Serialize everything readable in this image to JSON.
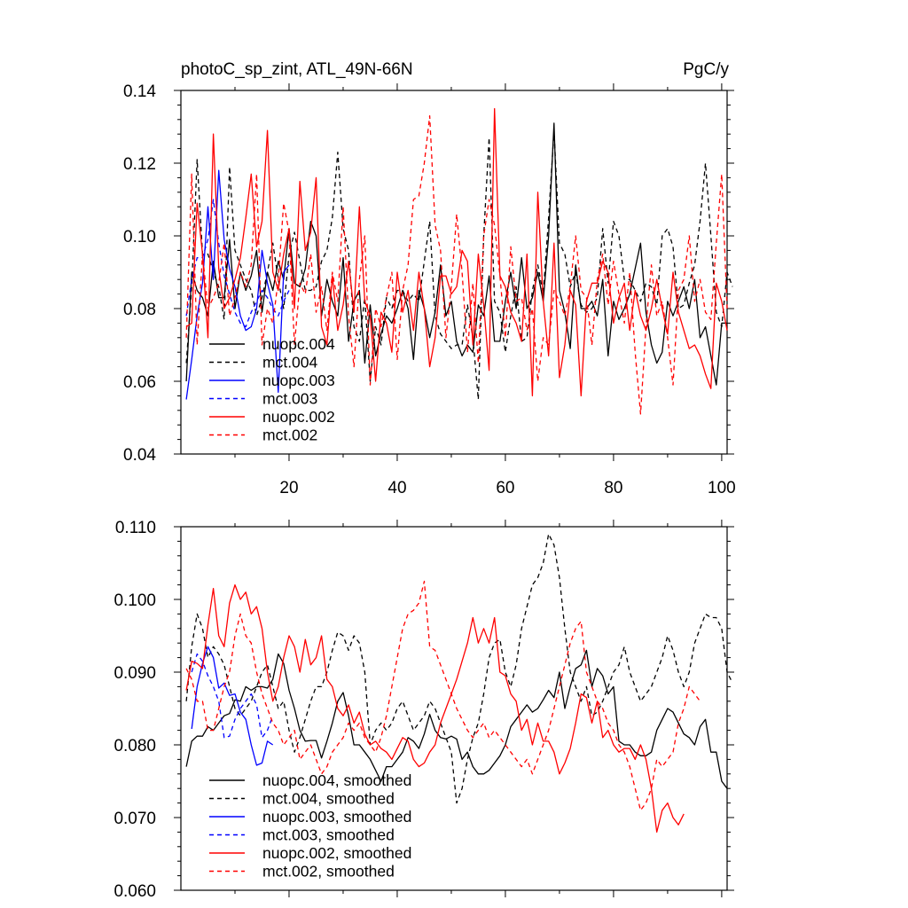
{
  "chart_data": [
    {
      "type": "line",
      "title": "photoC_sp_zint, ATL_49N-66N",
      "units": "PgC/y",
      "xlabel": "",
      "ylabel": "",
      "xlim": [
        0,
        101
      ],
      "ylim": [
        0.04,
        0.14
      ],
      "yticks": [
        "0.04",
        "0.06",
        "0.08",
        "0.10",
        "0.12",
        "0.14"
      ],
      "xticks": [
        "20",
        "40",
        "60",
        "80",
        "100"
      ],
      "legend_position": "bottom-left",
      "series": [
        {
          "name": "nuopc.004",
          "color": "#000000",
          "dash": "solid",
          "x0": 1,
          "values": [
            0.06,
            0.09,
            0.085,
            0.083,
            0.078,
            0.093,
            0.083,
            0.083,
            0.099,
            0.08,
            0.09,
            0.085,
            0.089,
            0.096,
            0.079,
            0.09,
            0.085,
            0.093,
            0.088,
            0.102,
            0.087,
            0.086,
            0.091,
            0.104,
            0.1,
            0.078,
            0.088,
            0.082,
            0.078,
            0.094,
            0.071,
            0.082,
            0.085,
            0.065,
            0.081,
            0.067,
            0.073,
            0.078,
            0.076,
            0.08,
            0.085,
            0.08,
            0.066,
            0.085,
            0.08,
            0.072,
            0.079,
            0.092,
            0.078,
            0.082,
            0.071,
            0.067,
            0.07,
            0.068,
            0.081,
            0.078,
            0.089,
            0.071,
            0.071,
            0.082,
            0.09,
            0.08,
            0.094,
            0.08,
            0.083,
            0.09,
            0.082,
            0.1,
            0.131,
            0.085,
            0.079,
            0.069,
            0.092,
            0.08,
            0.08,
            0.082,
            0.078,
            0.088,
            0.067,
            0.082,
            0.077,
            0.08,
            0.084,
            0.091,
            0.098,
            0.079,
            0.07,
            0.065,
            0.068,
            0.082,
            0.078,
            0.082,
            0.086,
            0.08,
            0.088,
            0.072,
            0.075,
            0.067,
            0.059,
            0.076,
            0.076
          ]
        },
        {
          "name": "mct.004",
          "color": "#000000",
          "dash": "dashed",
          "x0": 1,
          "values": [
            0.065,
            0.086,
            0.121,
            0.095,
            0.095,
            0.09,
            0.086,
            0.077,
            0.119,
            0.096,
            0.092,
            0.088,
            0.085,
            0.078,
            0.083,
            0.09,
            0.098,
            0.088,
            0.08,
            0.095,
            0.101,
            0.093,
            0.085,
            0.085,
            0.086,
            0.093,
            0.096,
            0.105,
            0.123,
            0.102,
            0.096,
            0.075,
            0.071,
            0.083,
            0.06,
            0.075,
            0.07,
            0.083,
            0.08,
            0.085,
            0.085,
            0.082,
            0.084,
            0.082,
            0.093,
            0.104,
            0.078,
            0.073,
            0.071,
            0.069,
            0.07,
            0.07,
            0.081,
            0.072,
            0.055,
            0.1,
            0.127,
            0.082,
            0.079,
            0.068,
            0.078,
            0.086,
            0.071,
            0.072,
            0.085,
            0.092,
            0.084,
            0.105,
            0.129,
            0.098,
            0.095,
            0.086,
            0.09,
            0.081,
            0.079,
            0.08,
            0.083,
            0.102,
            0.087,
            0.104,
            0.1,
            0.088,
            0.088,
            0.085,
            0.082,
            0.087,
            0.086,
            0.081,
            0.1,
            0.102,
            0.097,
            0.08,
            0.081,
            0.087,
            0.092,
            0.104,
            0.12,
            0.1,
            0.079,
            0.075,
            0.09,
            0.086
          ]
        },
        {
          "name": "nuopc.003",
          "color": "#0000ff",
          "dash": "solid",
          "x0": 1,
          "values": [
            0.055,
            0.066,
            0.078,
            0.087,
            0.108,
            0.088,
            0.118,
            0.099,
            0.091,
            0.086,
            0.078,
            0.074,
            0.075,
            0.08,
            0.096,
            0.087,
            0.081,
            0.057,
            0.09,
            0.092
          ]
        },
        {
          "name": "mct.003",
          "color": "#0000ff",
          "dash": "dashed",
          "x0": 1,
          "values": [
            0.078,
            0.088,
            0.094,
            0.094,
            0.099,
            0.11,
            0.098,
            0.089,
            0.084,
            0.079,
            0.076,
            0.075,
            0.079,
            0.082,
            0.085,
            0.083,
            0.08,
            0.078,
            0.082,
            0.085
          ]
        },
        {
          "name": "nuopc.002",
          "color": "#ff0000",
          "dash": "solid",
          "x0": 1,
          "values": [
            0.075,
            0.076,
            0.109,
            0.095,
            0.072,
            0.128,
            0.091,
            0.08,
            0.083,
            0.088,
            0.094,
            0.105,
            0.117,
            0.097,
            0.104,
            0.129,
            0.09,
            0.085,
            0.095,
            0.102,
            0.08,
            0.115,
            0.096,
            0.101,
            0.116,
            0.075,
            0.07,
            0.089,
            0.074,
            0.081,
            0.093,
            0.079,
            0.108,
            0.082,
            0.078,
            0.06,
            0.079,
            0.076,
            0.068,
            0.09,
            0.079,
            0.085,
            0.074,
            0.09,
            0.08,
            0.064,
            0.072,
            0.089,
            0.089,
            0.084,
            0.086,
            0.096,
            0.093,
            0.07,
            0.095,
            0.081,
            0.063,
            0.135,
            0.089,
            0.086,
            0.079,
            0.076,
            0.071,
            0.095,
            0.056,
            0.112,
            0.082,
            0.067,
            0.098,
            0.061,
            0.07,
            0.085,
            0.081,
            0.056,
            0.082,
            0.087,
            0.087,
            0.093,
            0.09,
            0.076,
            0.083,
            0.087,
            0.074,
            0.085,
            0.078,
            0.074,
            0.08,
            0.088,
            0.08,
            0.073,
            0.09,
            0.079,
            0.074,
            0.069,
            0.07,
            0.067,
            0.062,
            0.058,
            0.087,
            0.082,
            0.074
          ]
        },
        {
          "name": "mct.002",
          "color": "#ff0000",
          "dash": "dashed",
          "x0": 1,
          "values": [
            0.072,
            0.117,
            0.07,
            0.095,
            0.08,
            0.083,
            0.087,
            0.098,
            0.078,
            0.083,
            0.09,
            0.086,
            0.092,
            0.117,
            0.07,
            0.08,
            0.076,
            0.088,
            0.109,
            0.101,
            0.07,
            0.087,
            0.084,
            0.095,
            0.079,
            0.086,
            0.074,
            0.09,
            0.082,
            0.108,
            0.078,
            0.064,
            0.088,
            0.1,
            0.059,
            0.08,
            0.075,
            0.083,
            0.09,
            0.066,
            0.085,
            0.092,
            0.11,
            0.111,
            0.12,
            0.133,
            0.103,
            0.096,
            0.072,
            0.086,
            0.106,
            0.09,
            0.068,
            0.087,
            0.065,
            0.1,
            0.11,
            0.103,
            0.089,
            0.072,
            0.097,
            0.082,
            0.083,
            0.074,
            0.08,
            0.06,
            0.072,
            0.07,
            0.085,
            0.082,
            0.078,
            0.086,
            0.1,
            0.085,
            0.083,
            0.07,
            0.088,
            0.095,
            0.081,
            0.093,
            0.084,
            0.076,
            0.09,
            0.068,
            0.051,
            0.075,
            0.092,
            0.078,
            0.082,
            0.072,
            0.059,
            0.085,
            0.088,
            0.1,
            0.082,
            0.088,
            0.079,
            0.077,
            0.098,
            0.117,
            0.08
          ]
        }
      ],
      "legend": [
        "nuopc.004",
        "mct.004",
        "nuopc.003",
        "mct.003",
        "nuopc.002",
        "mct.002"
      ]
    },
    {
      "type": "line",
      "title": "",
      "xlabel": "",
      "ylabel": "",
      "xlim": [
        0,
        101
      ],
      "ylim": [
        0.06,
        0.11
      ],
      "yticks": [
        "0.060",
        "0.070",
        "0.080",
        "0.090",
        "0.100",
        "0.110"
      ],
      "xticks": [],
      "legend_position": "bottom-left",
      "series": [
        {
          "name": "nuopc.004, smoothed",
          "color": "#000000",
          "dash": "solid",
          "x0": 1,
          "values": [
            0.077,
            0.0805,
            0.0812,
            0.0812,
            0.0825,
            0.082,
            0.083,
            0.084,
            0.0843,
            0.0862,
            0.086,
            0.088,
            0.0875,
            0.088,
            0.088,
            0.0878,
            0.089,
            0.0925,
            0.0912,
            0.0875,
            0.085,
            0.082,
            0.0805,
            0.0806,
            0.0806,
            0.0782,
            0.0805,
            0.083,
            0.086,
            0.0872,
            0.084,
            0.08,
            0.08,
            0.079,
            0.078,
            0.0765,
            0.075,
            0.077,
            0.077,
            0.078,
            0.079,
            0.081,
            0.0805,
            0.0795,
            0.0815,
            0.0842,
            0.082,
            0.081,
            0.0808,
            0.0812,
            0.0808,
            0.078,
            0.079,
            0.077,
            0.076,
            0.076,
            0.0765,
            0.0775,
            0.0785,
            0.08,
            0.0825,
            0.0835,
            0.0845,
            0.0855,
            0.0845,
            0.085,
            0.0862,
            0.0875,
            0.0865,
            0.09,
            0.085,
            0.088,
            0.0905,
            0.091,
            0.093,
            0.088,
            0.0905,
            0.0895,
            0.087,
            0.088,
            0.0805,
            0.08,
            0.08,
            0.079,
            0.0785,
            0.0785,
            0.079,
            0.082,
            0.0835,
            0.085,
            0.0845,
            0.083,
            0.0815,
            0.081,
            0.08,
            0.0825,
            0.0835,
            0.079,
            0.079,
            0.075,
            0.074
          ]
        },
        {
          "name": "mct.004, smoothed",
          "color": "#000000",
          "dash": "dashed",
          "x0": 1,
          "values": [
            0.086,
            0.0935,
            0.098,
            0.096,
            0.092,
            0.0935,
            0.0925,
            0.091,
            0.088,
            0.085,
            0.084,
            0.085,
            0.086,
            0.088,
            0.09,
            0.091,
            0.088,
            0.085,
            0.086,
            0.082,
            0.079,
            0.081,
            0.0835,
            0.086,
            0.088,
            0.088,
            0.09,
            0.093,
            0.0955,
            0.095,
            0.093,
            0.095,
            0.094,
            0.09,
            0.08,
            0.082,
            0.083,
            0.082,
            0.083,
            0.085,
            0.086,
            0.084,
            0.082,
            0.083,
            0.084,
            0.086,
            0.085,
            0.083,
            0.081,
            0.079,
            0.072,
            0.074,
            0.078,
            0.081,
            0.083,
            0.087,
            0.092,
            0.094,
            0.0945,
            0.09,
            0.088,
            0.091,
            0.096,
            0.099,
            0.102,
            0.103,
            0.105,
            0.109,
            0.1075,
            0.103,
            0.096,
            0.09,
            0.088,
            0.086,
            0.088,
            0.084,
            0.0845,
            0.086,
            0.088,
            0.09,
            0.091,
            0.0935,
            0.09,
            0.088,
            0.086,
            0.087,
            0.088,
            0.09,
            0.092,
            0.095,
            0.093,
            0.09,
            0.088,
            0.09,
            0.094,
            0.096,
            0.098,
            0.0975,
            0.0975,
            0.096,
            0.09,
            0.0885
          ]
        },
        {
          "name": "nuopc.003, smoothed",
          "color": "#0000ff",
          "dash": "solid",
          "x0": 2,
          "values": [
            0.0822,
            0.088,
            0.0912,
            0.0935,
            0.092,
            0.0878,
            0.0885,
            0.0868,
            0.087,
            0.0845,
            0.0835,
            0.08,
            0.0772,
            0.0775,
            0.0805,
            0.08
          ]
        },
        {
          "name": "mct.003, smoothed",
          "color": "#0000ff",
          "dash": "dashed",
          "x0": 2,
          "values": [
            0.09,
            0.0925,
            0.0915,
            0.0895,
            0.088,
            0.086,
            0.081,
            0.0812,
            0.0835,
            0.085,
            0.086,
            0.087,
            0.0855,
            0.081,
            0.082,
            0.084
          ]
        },
        {
          "name": "nuopc.002, smoothed",
          "color": "#ff0000",
          "dash": "solid",
          "x0": 1,
          "values": [
            0.0875,
            0.0915,
            0.0912,
            0.0905,
            0.0965,
            0.1015,
            0.095,
            0.0935,
            0.0995,
            0.102,
            0.1,
            0.101,
            0.098,
            0.099,
            0.096,
            0.09,
            0.086,
            0.088,
            0.092,
            0.095,
            0.0935,
            0.09,
            0.0945,
            0.091,
            0.092,
            0.095,
            0.089,
            0.088,
            0.085,
            0.084,
            0.0855,
            0.083,
            0.0845,
            0.0815,
            0.08,
            0.0805,
            0.0795,
            0.079,
            0.078,
            0.0795,
            0.081,
            0.0805,
            0.078,
            0.077,
            0.0775,
            0.079,
            0.08,
            0.083,
            0.085,
            0.087,
            0.089,
            0.0915,
            0.094,
            0.0975,
            0.094,
            0.096,
            0.094,
            0.0975,
            0.09,
            0.0895,
            0.087,
            0.086,
            0.082,
            0.0835,
            0.08,
            0.083,
            0.0805,
            0.0805,
            0.079,
            0.076,
            0.0775,
            0.0795,
            0.083,
            0.087,
            0.0865,
            0.083,
            0.086,
            0.081,
            0.082,
            0.08,
            0.079,
            0.0795,
            0.0795,
            0.078,
            0.08,
            0.078,
            0.074,
            0.068,
            0.071,
            0.072,
            0.07,
            0.069,
            0.0705
          ]
        },
        {
          "name": "mct.002, smoothed",
          "color": "#ff0000",
          "dash": "dashed",
          "x0": 1,
          "values": [
            0.0905,
            0.089,
            0.086,
            0.086,
            0.082,
            0.082,
            0.085,
            0.088,
            0.09,
            0.095,
            0.098,
            0.095,
            0.094,
            0.09,
            0.087,
            0.085,
            0.083,
            0.082,
            0.08,
            0.081,
            0.082,
            0.078,
            0.079,
            0.08,
            0.078,
            0.076,
            0.077,
            0.079,
            0.08,
            0.081,
            0.083,
            0.082,
            0.083,
            0.081,
            0.08,
            0.079,
            0.081,
            0.084,
            0.088,
            0.092,
            0.096,
            0.098,
            0.0985,
            0.0995,
            0.1025,
            0.0935,
            0.093,
            0.091,
            0.089,
            0.087,
            0.085,
            0.0835,
            0.082,
            0.081,
            0.082,
            0.083,
            0.081,
            0.082,
            0.081,
            0.08,
            0.079,
            0.078,
            0.077,
            0.078,
            0.076,
            0.078,
            0.08,
            0.082,
            0.085,
            0.088,
            0.091,
            0.094,
            0.096,
            0.097,
            0.09,
            0.088,
            0.086,
            0.085,
            0.083,
            0.082,
            0.08,
            0.079,
            0.077,
            0.074,
            0.071,
            0.072,
            0.074,
            0.078,
            0.077,
            0.078,
            0.079,
            0.083,
            0.085,
            0.088,
            0.087,
            0.086
          ]
        }
      ],
      "legend": [
        "nuopc.004, smoothed",
        "mct.004, smoothed",
        "nuopc.003, smoothed",
        "mct.003, smoothed",
        "nuopc.002, smoothed",
        "mct.002, smoothed"
      ]
    }
  ]
}
